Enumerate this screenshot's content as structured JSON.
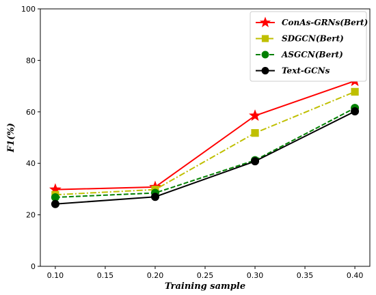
{
  "chart_data": {
    "type": "line",
    "x": [
      0.1,
      0.2,
      0.3,
      0.4
    ],
    "xticks": [
      "0.10",
      "0.15",
      "0.20",
      "0.25",
      "0.30",
      "0.35",
      "0.40"
    ],
    "yticks": [
      "0",
      "20",
      "40",
      "60",
      "80",
      "100"
    ],
    "xlim": [
      0.085,
      0.415
    ],
    "ylim": [
      0,
      100
    ],
    "xlabel": "Training sample",
    "ylabel": "F1(%)",
    "grid": false,
    "legend": "top-right",
    "series": [
      {
        "name": "ConAs-GRNs(Bert)",
        "values": [
          29.8,
          30.8,
          58.5,
          72.0
        ],
        "color": "#ff0000",
        "marker": "star",
        "line": "solid"
      },
      {
        "name": "SDGCN(Bert)",
        "values": [
          27.8,
          29.8,
          51.8,
          67.8
        ],
        "color": "#bfbf00",
        "marker": "square",
        "line": "dashdot"
      },
      {
        "name": "ASGCN(Bert)",
        "values": [
          26.8,
          28.5,
          41.2,
          61.5
        ],
        "color": "#008000",
        "marker": "circle",
        "line": "dashed"
      },
      {
        "name": "Text-GCNs",
        "values": [
          24.2,
          27.0,
          40.8,
          60.2
        ],
        "color": "#000000",
        "marker": "circle",
        "line": "solid"
      }
    ]
  }
}
